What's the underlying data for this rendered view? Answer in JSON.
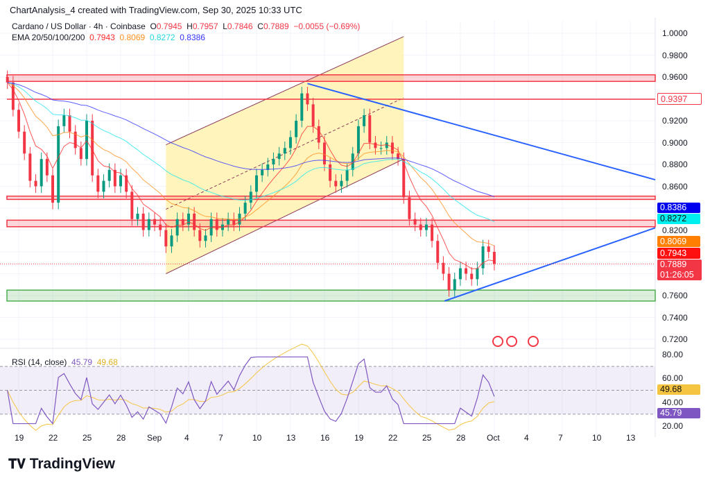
{
  "header": {
    "credit": "ChartAnalysis_4 created with TradingView.com, Sep 30, 2025 10:33 UTC",
    "symbol": "Cardano / US Dollar · 4h · Coinbase",
    "o_label": "O",
    "o": "0.7945",
    "h_label": "H",
    "h": "0.7957",
    "l_label": "L",
    "l": "0.7846",
    "c_label": "C",
    "c": "0.7889",
    "change": "−0.0055 (−0.69%)",
    "ema_label": "EMA 20/50/100/200",
    "ema": [
      "0.7943",
      "0.8069",
      "0.8272",
      "0.8386"
    ]
  },
  "rsi_legend": {
    "label": "RSI (14, close)",
    "value": "45.79",
    "ma": "49.68"
  },
  "price_labels": {
    "resistance": "0.9397",
    "ema200": "0.8386",
    "ema100": "0.8272",
    "ema50": "0.8069",
    "ema20": "0.7943",
    "last": "0.7889",
    "countdown": "01:26:05",
    "rsi_ma": "49.68",
    "rsi": "45.79"
  },
  "colors": {
    "up": "#089981",
    "down": "#f23645",
    "ema20": "#ff2a2a",
    "ema50": "#ff9020",
    "ema100": "#22e6ee",
    "ema200": "#3333ff",
    "zone_red": "#f23645",
    "zone_green": "#4caf50",
    "triangle": "#2962ff",
    "channel": "#8e3a5a",
    "channel_fill": "#fff3b0",
    "rsi": "#7e57c2",
    "rsi_ma": "#f5c542"
  },
  "logo": "TradingView",
  "chart_data": {
    "type": "candlestick",
    "start": "2025-08-18 00:00",
    "interval": "12h",
    "closes": [
      0.955,
      0.93,
      0.91,
      0.89,
      0.865,
      0.86,
      0.885,
      0.87,
      0.845,
      0.915,
      0.925,
      0.91,
      0.895,
      0.885,
      0.92,
      0.87,
      0.855,
      0.865,
      0.875,
      0.86,
      0.87,
      0.855,
      0.83,
      0.835,
      0.82,
      0.83,
      0.825,
      0.82,
      0.805,
      0.815,
      0.83,
      0.825,
      0.835,
      0.82,
      0.81,
      0.815,
      0.83,
      0.82,
      0.825,
      0.83,
      0.825,
      0.835,
      0.845,
      0.855,
      0.87,
      0.875,
      0.88,
      0.885,
      0.89,
      0.895,
      0.905,
      0.92,
      0.945,
      0.935,
      0.915,
      0.9,
      0.88,
      0.865,
      0.86,
      0.865,
      0.875,
      0.89,
      0.915,
      0.925,
      0.9,
      0.895,
      0.895,
      0.9,
      0.89,
      0.885,
      0.85,
      0.83,
      0.825,
      0.82,
      0.825,
      0.81,
      0.79,
      0.78,
      0.765,
      0.775,
      0.785,
      0.78,
      0.775,
      0.785,
      0.805,
      0.8,
      0.789
    ],
    "ylim": [
      0.72,
      1.0
    ],
    "y_ticks": [
      "1.0000",
      "0.9800",
      "0.9600",
      "0.9200",
      "0.9000",
      "0.8800",
      "0.8600",
      "0.8200",
      "0.7600",
      "0.7400",
      "0.7200"
    ],
    "x_ticks": [
      "19",
      "22",
      "25",
      "28",
      "Sep",
      "4",
      "7",
      "10",
      "13",
      "16",
      "19",
      "22",
      "25",
      "28",
      "Oct",
      "4",
      "7",
      "10",
      "13"
    ],
    "zones": [
      {
        "type": "resistance",
        "from": 0.956,
        "to": 0.962
      },
      {
        "type": "resistance",
        "from": 0.848,
        "to": 0.851
      },
      {
        "type": "resistance",
        "from": 0.823,
        "to": 0.829
      },
      {
        "type": "support",
        "from": 0.755,
        "to": 0.765
      }
    ],
    "lines": [
      {
        "type": "resistance",
        "price": 0.9397
      }
    ],
    "channel": {
      "start": "Sep 1",
      "end": "Sep 22",
      "lower": [
        0.78,
        0.885
      ],
      "upper": [
        0.898,
        0.997
      ]
    },
    "triangle": {
      "upper": [
        [
          "Sep 13 12:00",
          0.954
        ],
        [
          "Oct 14",
          0.866
        ]
      ],
      "lower": [
        [
          "Sep 25 14:00",
          0.755
        ],
        [
          "Oct 14",
          0.822
        ]
      ]
    },
    "rsi": {
      "ylim": [
        20,
        80
      ],
      "y_ticks": [
        "80.00",
        "60.00",
        "40.00",
        "20.00"
      ],
      "band": [
        30,
        70
      ]
    }
  }
}
